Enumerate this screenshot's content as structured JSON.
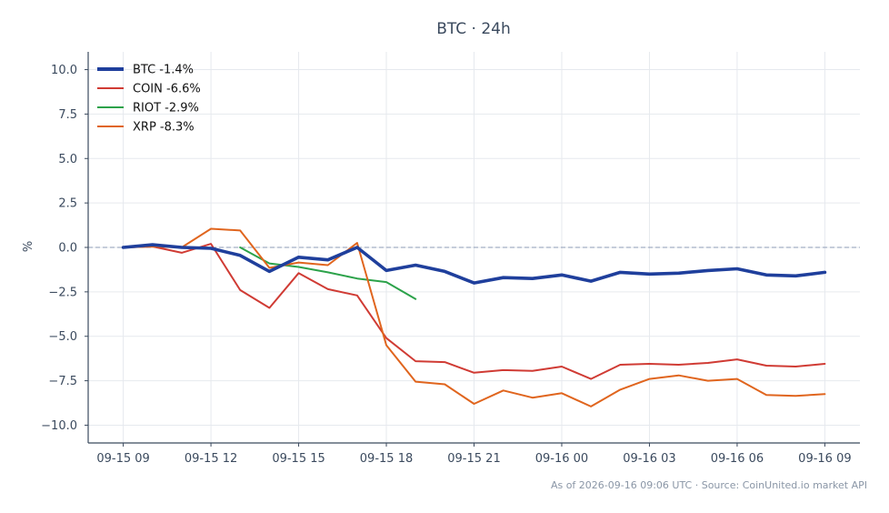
{
  "chart_data": {
    "type": "line",
    "title": "BTC · 24h",
    "xlabel": "",
    "ylabel": "%",
    "ylim": [
      -11.0,
      11.0
    ],
    "y_ticks": [
      10.0,
      7.5,
      5.0,
      2.5,
      0.0,
      -2.5,
      -5.0,
      -7.5,
      -10.0
    ],
    "y_tick_labels": [
      "10.0",
      "7.5",
      "5.0",
      "2.5",
      "0.0",
      "−2.5",
      "−5.0",
      "−7.5",
      "−10.0"
    ],
    "x_tick_labels": [
      "09-15 09",
      "09-15 12",
      "09-15 15",
      "09-15 18",
      "09-15 21",
      "09-16 00",
      "09-16 03",
      "09-16 06",
      "09-16 09"
    ],
    "x_tick_hours": [
      0,
      3,
      6,
      9,
      12,
      15,
      18,
      21,
      24
    ],
    "xlim_hours": [
      -1.2,
      25.2
    ],
    "grid": true,
    "zero_line": true,
    "legend_position": "top-left",
    "series": [
      {
        "name": "BTC -1.4%",
        "color": "#1f3f9c",
        "bold": true,
        "points": [
          [
            0,
            0.0
          ],
          [
            1,
            0.15
          ],
          [
            2,
            0.0
          ],
          [
            3,
            -0.05
          ],
          [
            4,
            -0.45
          ],
          [
            5,
            -1.35
          ],
          [
            6,
            -0.55
          ],
          [
            7,
            -0.7
          ],
          [
            8,
            0.0
          ],
          [
            9,
            -1.3
          ],
          [
            10,
            -1.0
          ],
          [
            11,
            -1.35
          ],
          [
            12,
            -2.0
          ],
          [
            13,
            -1.7
          ],
          [
            14,
            -1.75
          ],
          [
            15,
            -1.55
          ],
          [
            16,
            -1.9
          ],
          [
            17,
            -1.4
          ],
          [
            18,
            -1.5
          ],
          [
            19,
            -1.45
          ],
          [
            20,
            -1.3
          ],
          [
            21,
            -1.2
          ],
          [
            22,
            -1.55
          ],
          [
            23,
            -1.6
          ],
          [
            24,
            -1.4
          ]
        ]
      },
      {
        "name": "COIN -6.6%",
        "color": "#d03b34",
        "bold": false,
        "points": [
          [
            0,
            0.0
          ],
          [
            1,
            0.05
          ],
          [
            2,
            -0.3
          ],
          [
            3,
            0.2
          ],
          [
            4,
            -2.4
          ],
          [
            5,
            -3.4
          ],
          [
            6,
            -1.45
          ],
          [
            7,
            -2.35
          ],
          [
            8,
            -2.7
          ],
          [
            9,
            -5.1
          ],
          [
            10,
            -6.4
          ],
          [
            11,
            -6.45
          ],
          [
            12,
            -7.05
          ],
          [
            13,
            -6.9
          ],
          [
            14,
            -6.95
          ],
          [
            15,
            -6.7
          ],
          [
            16,
            -7.4
          ],
          [
            17,
            -6.6
          ],
          [
            18,
            -6.55
          ],
          [
            19,
            -6.6
          ],
          [
            20,
            -6.5
          ],
          [
            21,
            -6.3
          ],
          [
            22,
            -6.65
          ],
          [
            23,
            -6.7
          ],
          [
            24,
            -6.55
          ]
        ]
      },
      {
        "name": "RIOT -2.9%",
        "color": "#2ca24a",
        "bold": false,
        "points": [
          [
            4,
            0.0
          ],
          [
            5,
            -0.9
          ],
          [
            6,
            -1.1
          ],
          [
            7,
            -1.4
          ],
          [
            8,
            -1.75
          ],
          [
            9,
            -1.95
          ],
          [
            10,
            -2.9
          ]
        ]
      },
      {
        "name": "XRP -8.3%",
        "color": "#e0651e",
        "bold": false,
        "points": [
          [
            0,
            0.0
          ],
          [
            1,
            0.05
          ],
          [
            2,
            0.0
          ],
          [
            3,
            1.05
          ],
          [
            4,
            0.95
          ],
          [
            5,
            -1.15
          ],
          [
            6,
            -0.85
          ],
          [
            7,
            -1.0
          ],
          [
            8,
            0.25
          ],
          [
            9,
            -5.5
          ],
          [
            10,
            -7.55
          ],
          [
            11,
            -7.7
          ],
          [
            12,
            -8.8
          ],
          [
            13,
            -8.05
          ],
          [
            14,
            -8.45
          ],
          [
            15,
            -8.2
          ],
          [
            16,
            -8.95
          ],
          [
            17,
            -8.0
          ],
          [
            18,
            -7.4
          ],
          [
            19,
            -7.2
          ],
          [
            20,
            -7.5
          ],
          [
            21,
            -7.4
          ],
          [
            22,
            -8.3
          ],
          [
            23,
            -8.35
          ],
          [
            24,
            -8.25
          ]
        ]
      }
    ],
    "footer": "As of 2026-09-16 09:06 UTC · Source: CoinUnited.io market API"
  }
}
